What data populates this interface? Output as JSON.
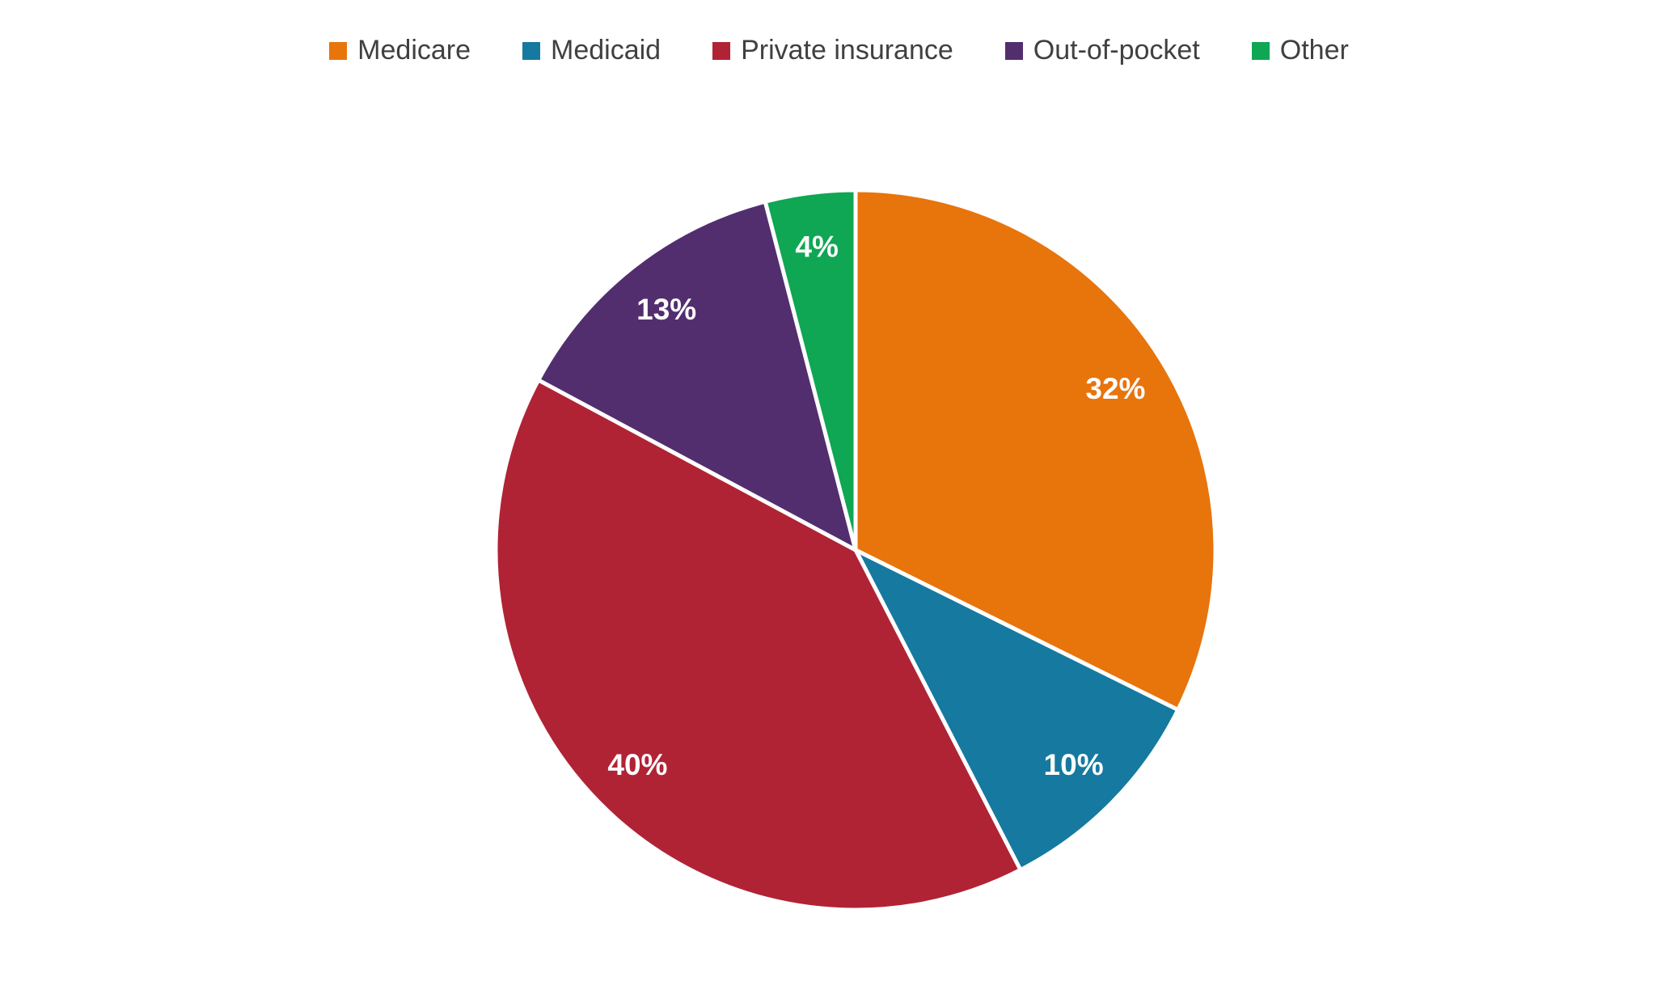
{
  "chart_data": {
    "type": "pie",
    "title": "",
    "categories": [
      "Medicare",
      "Medicaid",
      "Private insurance",
      "Out-of-pocket",
      "Other"
    ],
    "values": [
      32,
      10,
      40,
      13,
      4
    ],
    "data_labels": [
      "32%",
      "10%",
      "40%",
      "13%",
      "4%"
    ],
    "colors": [
      "#E8740C",
      "#16799F",
      "#B02335",
      "#522E6F",
      "#0FA654"
    ],
    "start_angle_deg": 0,
    "direction": "clockwise",
    "legend_position": "top",
    "slice_border_color": "#ffffff",
    "label_color": "#ffffff",
    "legend_text_color": "#404040"
  },
  "legend": {
    "items": [
      {
        "label": "Medicare",
        "color": "#E8740C"
      },
      {
        "label": "Medicaid",
        "color": "#16799F"
      },
      {
        "label": "Private insurance",
        "color": "#B02335"
      },
      {
        "label": "Out-of-pocket",
        "color": "#522E6F"
      },
      {
        "label": "Other",
        "color": "#0FA654"
      }
    ]
  }
}
